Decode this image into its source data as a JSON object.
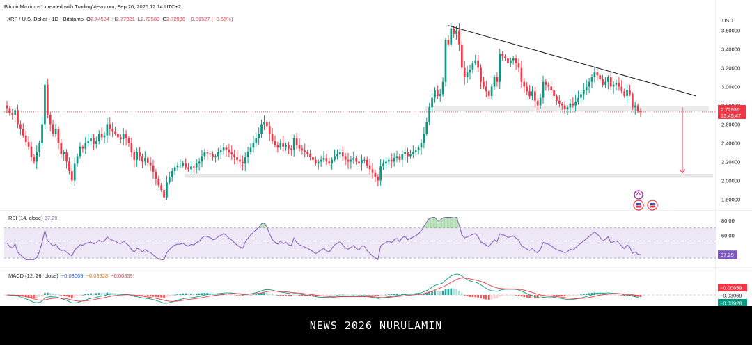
{
  "header": {
    "credit": "BitcoinMaximus1 created with TradingView.com, Sep 26, 2025 12:14 UTC+2",
    "symbol": "XRP / U.S. Dollar · 1D · Bitstamp",
    "o_label": "O",
    "o_value": "2.74584",
    "h_label": "H",
    "h_value": "2.77921",
    "l_label": "L",
    "l_value": "2.72583",
    "c_label": "C",
    "c_value": "2.72936",
    "change": "−0.01527 (−0.56%)",
    "currency": "USD"
  },
  "colors": {
    "up": "#089981",
    "down": "#f23645",
    "rsi": "#7e57c2",
    "macd": "#2962ff",
    "signal": "#ff6d00",
    "trend": "#131722"
  },
  "chart_data": [
    {
      "type": "candlestick",
      "title": "XRP / U.S. Dollar · 1D · Bitstamp",
      "ylim": [
        1.7,
        3.7
      ],
      "y_ticks": [
        "3.60000",
        "3.40000",
        "3.20000",
        "3.00000",
        "2.80000",
        "2.60000",
        "2.40000",
        "2.20000",
        "2.00000",
        "1.80000"
      ],
      "y_tick_values": [
        3.6,
        3.4,
        3.2,
        3.0,
        2.8,
        2.6,
        2.4,
        2.2,
        2.0,
        1.8
      ],
      "last_price_label": "2.72936",
      "countdown_label": "13:45:47",
      "closes": [
        2.77,
        2.72,
        2.7,
        2.75,
        2.6,
        2.55,
        2.48,
        2.41,
        2.36,
        2.25,
        2.2,
        2.3,
        2.4,
        2.6,
        3.02,
        2.7,
        2.6,
        2.5,
        2.55,
        2.4,
        2.28,
        2.3,
        2.2,
        2.1,
        2.0,
        2.18,
        2.26,
        2.36,
        2.34,
        2.4,
        2.42,
        2.45,
        2.39,
        2.42,
        2.5,
        2.46,
        2.48,
        2.6,
        2.55,
        2.52,
        2.5,
        2.46,
        2.44,
        2.5,
        2.45,
        2.4,
        2.3,
        2.22,
        2.3,
        2.26,
        2.2,
        2.24,
        2.19,
        2.16,
        2.09,
        2.02,
        1.95,
        1.9,
        1.82,
        1.98,
        2.04,
        2.1,
        2.14,
        2.16,
        2.16,
        2.18,
        2.14,
        2.12,
        2.15,
        2.14,
        2.18,
        2.2,
        2.26,
        2.3,
        2.29,
        2.28,
        2.25,
        2.26,
        2.3,
        2.32,
        2.35,
        2.33,
        2.3,
        2.28,
        2.25,
        2.22,
        2.2,
        2.18,
        2.25,
        2.3,
        2.35,
        2.4,
        2.45,
        2.5,
        2.6,
        2.62,
        2.58,
        2.5,
        2.42,
        2.38,
        2.35,
        2.4,
        2.36,
        2.38,
        2.34,
        2.33,
        2.45,
        2.38,
        2.34,
        2.32,
        2.3,
        2.28,
        2.25,
        2.22,
        2.18,
        2.2,
        2.22,
        2.24,
        2.2,
        2.18,
        2.22,
        2.26,
        2.28,
        2.3,
        2.26,
        2.22,
        2.2,
        2.22,
        2.24,
        2.2,
        2.18,
        2.22,
        2.22,
        2.16,
        2.12,
        2.08,
        2.04,
        2.0,
        2.15,
        2.18,
        2.2,
        2.22,
        2.2,
        2.24,
        2.26,
        2.22,
        2.28,
        2.3,
        2.26,
        2.28,
        2.3,
        2.32,
        2.35,
        2.4,
        2.5,
        2.62,
        2.78,
        2.88,
        2.96,
        2.9,
        2.92,
        3.05,
        3.5,
        3.45,
        3.62,
        3.56,
        3.6,
        3.45,
        3.2,
        3.1,
        3.15,
        3.18,
        3.25,
        3.28,
        3.2,
        3.05,
        3.0,
        2.95,
        2.9,
        3.0,
        3.1,
        3.05,
        3.35,
        3.32,
        3.3,
        3.25,
        3.28,
        3.3,
        3.25,
        3.2,
        3.05,
        3.0,
        2.95,
        2.9,
        2.95,
        2.85,
        2.8,
        2.88,
        3.05,
        3.02,
        3.0,
        2.96,
        2.9,
        2.85,
        2.82,
        2.8,
        2.76,
        2.78,
        2.82,
        2.8,
        2.84,
        2.88,
        2.92,
        2.96,
        3.0,
        3.05,
        3.1,
        3.15,
        3.12,
        3.08,
        3.02,
        3.05,
        3.1,
        3.0,
        3.02,
        3.04,
        3.0,
        2.95,
        2.9,
        2.96,
        2.92,
        2.78,
        2.8,
        2.74,
        2.73
      ],
      "resistance_trendline": {
        "from": {
          "bar": 163,
          "price": 3.65
        },
        "to": {
          "bar": 245,
          "price": 2.92
        }
      },
      "support_zone": [
        2.03,
        2.07
      ],
      "current_zone": [
        2.74,
        2.79
      ]
    },
    {
      "type": "line",
      "title": "RSI (14, close)",
      "value_label": "37.29",
      "ylim": [
        20,
        90
      ],
      "y_ticks": [
        "80.00",
        "60.00"
      ],
      "y_tick_values": [
        80,
        60
      ],
      "band": [
        30,
        70
      ]
    },
    {
      "type": "bar",
      "title": "MACD (12, 26, close)",
      "values_text": [
        "−0.03069",
        "−0.03928",
        "−0.00859"
      ],
      "axis_labels": [
        "−0.00859",
        "−0.03069",
        "−0.03928"
      ]
    }
  ],
  "footer": {
    "text": "NEWS 2026 NURULAMIN"
  }
}
